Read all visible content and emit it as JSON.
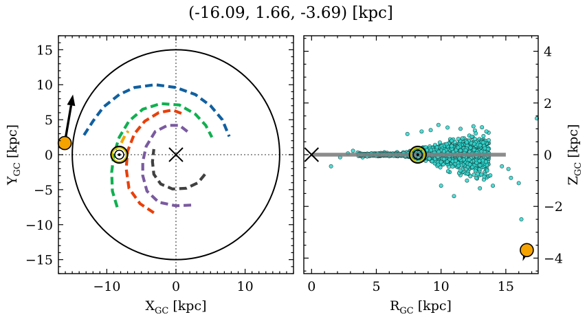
{
  "chart_data": [
    {
      "type": "line",
      "title": "(-16.09, 1.66, -3.69) [kpc]",
      "xlabel": "X",
      "xlabel_sub": "GC",
      "xlabel_unit": " [kpc]",
      "ylabel": "Y",
      "ylabel_sub": "GC",
      "ylabel_unit": " [kpc]",
      "xlim": [
        -17,
        17
      ],
      "ylim": [
        -17,
        17
      ],
      "xticks": [
        -10,
        0,
        10
      ],
      "yticks": [
        -15,
        -10,
        -5,
        0,
        5,
        10,
        15
      ],
      "xtick_labels": [
        "−10",
        "0",
        "10"
      ],
      "ytick_labels": [
        "−15",
        "−10",
        "−5",
        "0",
        "5",
        "10",
        "15"
      ],
      "circle_radius": 15,
      "galactic_center": [
        0,
        0
      ],
      "sun": [
        -8.2,
        0
      ],
      "source": [
        -16.09,
        1.66
      ],
      "source_color": "#f5a300",
      "arrow_tip": [
        -14.9,
        8.6
      ],
      "arms": [
        {
          "color": "#1060a0",
          "points": [
            [
              -13.3,
              2.8
            ],
            [
              -12,
              4.8
            ],
            [
              -10.5,
              6.8
            ],
            [
              -8.2,
              8.6
            ],
            [
              -6,
              9.6
            ],
            [
              -3,
              10
            ],
            [
              0,
              9.6
            ],
            [
              2.8,
              8.6
            ],
            [
              5,
              7
            ],
            [
              6.7,
              5
            ],
            [
              7.7,
              2.6
            ]
          ]
        },
        {
          "color": "#10b050",
          "points": [
            [
              -8.5,
              -7.5
            ],
            [
              -9.2,
              -5.2
            ],
            [
              -9.3,
              -2.5
            ],
            [
              -9,
              0
            ],
            [
              -8.2,
              2.5
            ],
            [
              -6.8,
              4.8
            ],
            [
              -4.8,
              6.5
            ],
            [
              -2.2,
              7.3
            ],
            [
              0.5,
              7.1
            ],
            [
              2.8,
              5.8
            ],
            [
              4.3,
              4.2
            ],
            [
              5.2,
              2.5
            ]
          ]
        },
        {
          "color": "#e8400a",
          "points": [
            [
              -3.2,
              -8.3
            ],
            [
              -5.2,
              -7
            ],
            [
              -6.8,
              -4.8
            ],
            [
              -7.2,
              -2
            ],
            [
              -7,
              0.5
            ],
            [
              -6,
              3
            ],
            [
              -4.5,
              4.8
            ],
            [
              -2.5,
              6
            ],
            [
              -0.5,
              6.4
            ],
            [
              1.3,
              5.7
            ]
          ]
        },
        {
          "color": "#7a5aa0",
          "points": [
            [
              2.2,
              -7.2
            ],
            [
              0,
              -7.3
            ],
            [
              -2.5,
              -6.8
            ],
            [
              -4.2,
              -5.2
            ],
            [
              -4.8,
              -3
            ],
            [
              -4.8,
              -1
            ],
            [
              -4.3,
              1.2
            ],
            [
              -3,
              3.3
            ],
            [
              -1.2,
              4.2
            ],
            [
              0.5,
              4.2
            ],
            [
              1.8,
              3.2
            ]
          ]
        },
        {
          "color": "#404040",
          "points": [
            [
              4.2,
              -2.8
            ],
            [
              3.2,
              -4
            ],
            [
              1.5,
              -4.8
            ],
            [
              -0.5,
              -4.9
            ],
            [
              -2.2,
              -4.2
            ],
            [
              -3.2,
              -2.8
            ],
            [
              -3.4,
              -1
            ],
            [
              -3.2,
              0.8
            ]
          ]
        },
        {
          "color": "#f5a300",
          "points": [
            [
              -7.9,
              1.7
            ],
            [
              -7.4,
              2.7
            ],
            [
              -6.9,
              3.4
            ]
          ]
        }
      ]
    },
    {
      "type": "scatter",
      "xlabel": "R",
      "xlabel_sub": "GC",
      "xlabel_unit": " [kpc]",
      "ylabel": "Z",
      "ylabel_sub": "GC",
      "ylabel_unit": " [kpc]",
      "xlim": [
        -0.6,
        17.5
      ],
      "ylim": [
        -4.6,
        4.6
      ],
      "xticks": [
        0,
        5,
        10,
        15
      ],
      "yticks": [
        -4,
        -2,
        0,
        2,
        4
      ],
      "xtick_labels": [
        "0",
        "5",
        "10",
        "15"
      ],
      "ytick_labels": [
        "−4",
        "−2",
        "0",
        "2",
        "4"
      ],
      "disk_line": [
        0,
        15
      ],
      "galactic_center": [
        0,
        0
      ],
      "sun": [
        8.2,
        0
      ],
      "source": [
        16.62,
        -3.69
      ],
      "source_color": "#f5a300",
      "star_color": "#30d8d0"
    }
  ]
}
